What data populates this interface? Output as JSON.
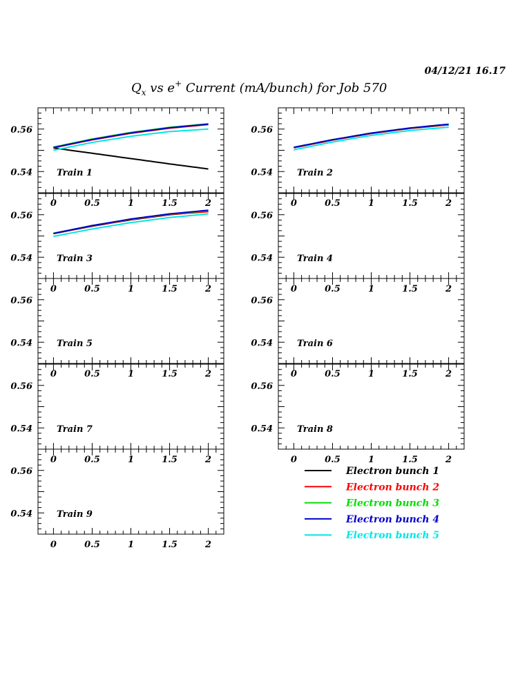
{
  "timestamp": "04/12/21   16.17",
  "title": {
    "q": "Q",
    "q_sub": "x",
    "vs": " vs e",
    "e_sup": "+",
    "rest": " Current (mA/bunch) for Job 570"
  },
  "colors": {
    "axes": "#000000",
    "series": [
      "#000000",
      "#ff0000",
      "#00dd00",
      "#0000cc",
      "#00e6e6"
    ]
  },
  "chart_data": {
    "type": "line",
    "x_tick_labels": [
      "0",
      "0.5",
      "1",
      "1.5",
      "2"
    ],
    "y_tick_labels": [
      "0.54",
      "0.56"
    ],
    "xlim": [
      -0.2,
      2.2
    ],
    "ylim": [
      0.53,
      0.57
    ],
    "legend_position": "bottom-right",
    "series_names": [
      "Electron bunch 1",
      "Electron bunch 2",
      "Electron bunch 3",
      "Electron bunch 4",
      "Electron bunch 5"
    ],
    "x": [
      0,
      0.5,
      1,
      1.5,
      2
    ],
    "panels": [
      {
        "label": "Train 1",
        "series": [
          {
            "name": "Electron bunch 1",
            "values": [
              0.5511,
              0.5486,
              0.5461,
              0.5436,
              0.5412
            ]
          },
          {
            "name": "Electron bunch 2",
            "values": [
              0.5512,
              0.5549,
              0.558,
              0.5604,
              0.5621
            ]
          },
          {
            "name": "Electron bunch 3",
            "values": [
              0.5515,
              0.5553,
              0.5584,
              0.5608,
              0.5625
            ]
          },
          {
            "name": "Electron bunch 4",
            "values": [
              0.5513,
              0.5551,
              0.5582,
              0.5606,
              0.5623
            ]
          },
          {
            "name": "Electron bunch 5",
            "values": [
              0.55,
              0.5537,
              0.5566,
              0.5588,
              0.56
            ]
          }
        ]
      },
      {
        "label": "Train 2",
        "series": [
          {
            "name": "Electron bunch 1",
            "values": [
              0.5512,
              0.5548,
              0.5579,
              0.5603,
              0.562
            ]
          },
          {
            "name": "Electron bunch 2",
            "values": [
              0.5512,
              0.5548,
              0.5579,
              0.5603,
              0.562
            ]
          },
          {
            "name": "Electron bunch 3",
            "values": [
              0.5514,
              0.555,
              0.5581,
              0.5605,
              0.5622
            ]
          },
          {
            "name": "Electron bunch 4",
            "values": [
              0.5514,
              0.555,
              0.5581,
              0.5605,
              0.5623
            ]
          },
          {
            "name": "Electron bunch 5",
            "values": [
              0.5502,
              0.5539,
              0.557,
              0.5593,
              0.5609
            ]
          }
        ]
      },
      {
        "label": "Train 3",
        "series": [
          {
            "name": "Electron bunch 1",
            "values": [
              0.5511,
              0.5546,
              0.5576,
              0.56,
              0.5617
            ]
          },
          {
            "name": "Electron bunch 2",
            "values": [
              0.5511,
              0.5547,
              0.5577,
              0.5601,
              0.5614
            ]
          },
          {
            "name": "Electron bunch 3",
            "values": [
              0.5513,
              0.5549,
              0.5579,
              0.5603,
              0.5619
            ]
          },
          {
            "name": "Electron bunch 4",
            "values": [
              0.5512,
              0.5549,
              0.558,
              0.5604,
              0.5621
            ]
          },
          {
            "name": "Electron bunch 5",
            "values": [
              0.5498,
              0.5533,
              0.5563,
              0.5587,
              0.5604
            ]
          }
        ]
      },
      {
        "label": "Train 4",
        "series": []
      },
      {
        "label": "Train 5",
        "series": []
      },
      {
        "label": "Train 6",
        "series": []
      },
      {
        "label": "Train 7",
        "series": []
      },
      {
        "label": "Train 8",
        "series": []
      },
      {
        "label": "Train 9",
        "series": []
      }
    ]
  }
}
